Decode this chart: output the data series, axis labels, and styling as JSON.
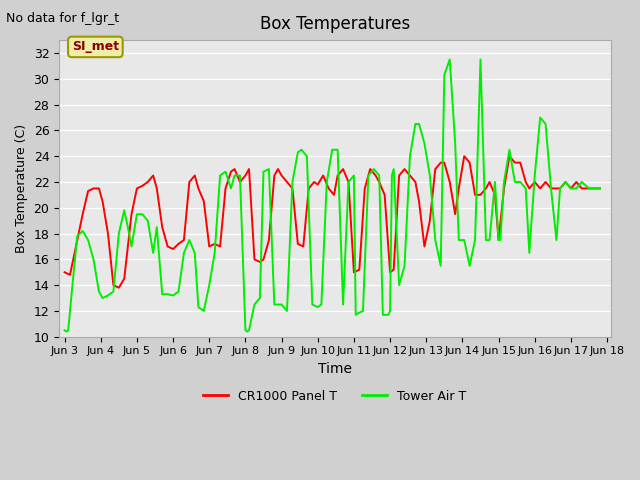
{
  "title": "Box Temperatures",
  "xlabel": "Time",
  "ylabel": "Box Temperature (C)",
  "ylim": [
    10,
    33
  ],
  "yticks": [
    10,
    12,
    14,
    16,
    18,
    20,
    22,
    24,
    26,
    28,
    30,
    32
  ],
  "no_data_text": "No data for f_lgr_t",
  "si_met_label": "SI_met",
  "line1_color": "#ff0000",
  "line2_color": "#00ee00",
  "line1_label": "CR1000 Panel T",
  "line2_label": "Tower Air T",
  "line_width": 1.4,
  "cr1000_x": [
    3.0,
    3.15,
    3.3,
    3.5,
    3.65,
    3.8,
    3.95,
    4.05,
    4.2,
    4.35,
    4.5,
    4.65,
    4.75,
    4.85,
    5.0,
    5.15,
    5.3,
    5.45,
    5.55,
    5.7,
    5.85,
    6.0,
    6.15,
    6.3,
    6.45,
    6.6,
    6.7,
    6.85,
    7.0,
    7.15,
    7.3,
    7.45,
    7.6,
    7.7,
    7.85,
    8.0,
    8.1,
    8.25,
    8.4,
    8.5,
    8.65,
    8.8,
    8.9,
    9.0,
    9.15,
    9.3,
    9.45,
    9.6,
    9.75,
    9.9,
    10.0,
    10.15,
    10.3,
    10.45,
    10.55,
    10.7,
    10.85,
    11.0,
    11.15,
    11.3,
    11.45,
    11.6,
    11.7,
    11.85,
    12.0,
    12.1,
    12.25,
    12.4,
    12.55,
    12.7,
    12.8,
    12.95,
    13.1,
    13.25,
    13.4,
    13.5,
    13.65,
    13.8,
    13.9,
    14.05,
    14.2,
    14.35,
    14.5,
    14.65,
    14.75,
    14.9,
    15.0,
    15.15,
    15.3,
    15.45,
    15.6,
    15.75,
    15.85,
    16.0,
    16.15,
    16.3,
    16.45,
    16.6,
    16.7,
    16.85,
    17.0,
    17.15,
    17.3,
    17.5,
    17.65,
    17.8
  ],
  "cr1000_y": [
    15.0,
    14.8,
    16.8,
    19.5,
    21.3,
    21.5,
    21.5,
    20.5,
    18.0,
    14.0,
    13.8,
    14.5,
    17.0,
    19.5,
    21.5,
    21.7,
    22.0,
    22.5,
    21.5,
    18.5,
    17.0,
    16.8,
    17.2,
    17.5,
    22.0,
    22.5,
    21.5,
    20.5,
    17.0,
    17.2,
    17.0,
    21.5,
    22.8,
    23.0,
    22.0,
    22.5,
    23.0,
    16.0,
    15.8,
    16.0,
    17.5,
    22.5,
    23.0,
    22.5,
    22.0,
    21.5,
    17.2,
    17.0,
    21.5,
    22.0,
    21.8,
    22.5,
    21.5,
    21.0,
    22.5,
    23.0,
    22.0,
    15.0,
    15.2,
    21.5,
    23.0,
    22.5,
    22.0,
    21.0,
    15.0,
    15.2,
    22.5,
    23.0,
    22.5,
    22.0,
    20.5,
    17.0,
    19.0,
    23.0,
    23.5,
    23.5,
    22.0,
    19.5,
    21.5,
    24.0,
    23.5,
    21.0,
    21.0,
    21.5,
    22.0,
    21.0,
    17.5,
    21.5,
    24.0,
    23.5,
    23.5,
    22.0,
    21.5,
    22.0,
    21.5,
    22.0,
    21.5,
    21.5,
    21.5,
    22.0,
    21.5,
    22.0,
    21.5,
    21.5,
    21.5,
    21.5
  ],
  "tower_x": [
    3.0,
    3.05,
    3.1,
    3.2,
    3.35,
    3.5,
    3.65,
    3.8,
    3.95,
    4.05,
    4.2,
    4.35,
    4.5,
    4.65,
    4.75,
    4.85,
    5.0,
    5.15,
    5.3,
    5.45,
    5.55,
    5.7,
    5.85,
    6.0,
    6.15,
    6.3,
    6.45,
    6.6,
    6.7,
    6.85,
    7.0,
    7.15,
    7.3,
    7.45,
    7.6,
    7.7,
    7.85,
    8.0,
    8.05,
    8.1,
    8.25,
    8.4,
    8.5,
    8.65,
    8.8,
    8.9,
    9.0,
    9.15,
    9.3,
    9.45,
    9.55,
    9.7,
    9.85,
    10.0,
    10.1,
    10.25,
    10.4,
    10.55,
    10.7,
    10.85,
    11.0,
    11.05,
    11.1,
    11.25,
    11.4,
    11.55,
    11.7,
    11.8,
    11.95,
    12.0,
    12.05,
    12.1,
    12.25,
    12.4,
    12.55,
    12.7,
    12.8,
    12.95,
    13.1,
    13.25,
    13.4,
    13.5,
    13.65,
    13.8,
    13.9,
    14.05,
    14.2,
    14.35,
    14.5,
    14.65,
    14.75,
    14.9,
    15.0,
    15.05,
    15.15,
    15.3,
    15.45,
    15.6,
    15.75,
    15.85,
    16.0,
    16.15,
    16.3,
    16.45,
    16.6,
    16.7,
    16.85,
    17.0,
    17.15,
    17.3,
    17.5,
    17.65,
    17.8
  ],
  "tower_y": [
    10.5,
    10.4,
    10.5,
    13.5,
    17.8,
    18.2,
    17.5,
    16.0,
    13.5,
    13.0,
    13.2,
    13.5,
    18.0,
    19.8,
    18.5,
    17.0,
    19.5,
    19.5,
    19.0,
    16.5,
    18.5,
    13.3,
    13.3,
    13.2,
    13.5,
    16.5,
    17.5,
    16.5,
    12.3,
    12.0,
    14.0,
    16.5,
    22.5,
    22.8,
    21.5,
    22.5,
    22.5,
    10.5,
    10.4,
    10.5,
    12.5,
    13.0,
    22.8,
    23.0,
    12.5,
    12.5,
    12.5,
    12.0,
    22.0,
    24.3,
    24.5,
    24.0,
    12.5,
    12.3,
    12.5,
    22.0,
    24.5,
    24.5,
    12.5,
    22.0,
    22.5,
    11.7,
    11.8,
    12.0,
    22.5,
    23.0,
    22.5,
    11.7,
    11.7,
    12.0,
    22.5,
    23.0,
    14.0,
    15.5,
    24.0,
    26.5,
    26.5,
    25.0,
    22.5,
    17.5,
    15.5,
    30.3,
    31.5,
    25.0,
    17.5,
    17.5,
    15.5,
    17.5,
    31.5,
    17.5,
    17.5,
    22.0,
    17.5,
    17.5,
    22.0,
    24.5,
    22.0,
    22.0,
    21.5,
    16.5,
    22.5,
    27.0,
    26.5,
    21.5,
    17.5,
    21.5,
    22.0,
    21.5,
    21.5,
    22.0,
    21.5,
    21.5,
    21.5
  ],
  "xtick_pos": [
    3,
    4,
    5,
    6,
    7,
    8,
    9,
    10,
    11,
    12,
    13,
    14,
    15,
    16,
    17,
    18
  ],
  "xtick_labels": [
    "Jun 3",
    "Jun 4",
    "Jun 5",
    "Jun 6",
    "Jun 7",
    "Jun 8",
    "Jun 9",
    "Jun 10",
    "Jun 11",
    "Jun 12",
    "Jun 13",
    "Jun 14",
    "Jun 15",
    "Jun 16",
    "Jun 17",
    "Jun 18"
  ],
  "xlim": [
    2.85,
    18.1
  ]
}
